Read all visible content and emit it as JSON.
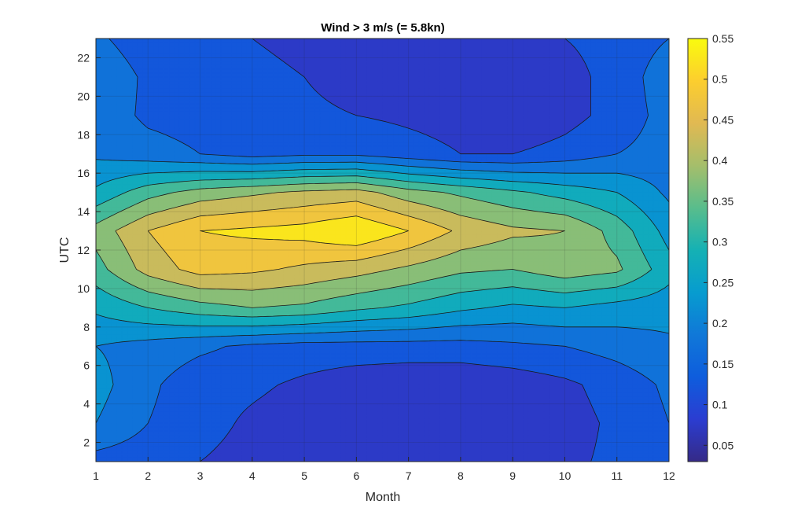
{
  "chart_data": {
    "type": "heatmap",
    "style": "filled-contour",
    "title": "Wind > 3 m/s (= 5.8kn)",
    "xlabel": "Month",
    "ylabel": "UTC",
    "x": [
      1,
      2,
      3,
      4,
      5,
      6,
      7,
      8,
      9,
      10,
      11,
      12
    ],
    "y": [
      1,
      3,
      5,
      7,
      9,
      11,
      13,
      15,
      17,
      19,
      21,
      23
    ],
    "xlim": [
      1,
      12
    ],
    "ylim": [
      1,
      23
    ],
    "xticks": [
      "1",
      "2",
      "3",
      "4",
      "5",
      "6",
      "7",
      "8",
      "9",
      "10",
      "11",
      "12"
    ],
    "yticks": [
      "2",
      "4",
      "6",
      "8",
      "10",
      "12",
      "14",
      "16",
      "18",
      "20",
      "22"
    ],
    "grid": true,
    "colormap": "parula",
    "colorbar": {
      "range": [
        0.03,
        0.55
      ],
      "ticks": [
        "0.05",
        "0.1",
        "0.15",
        "0.2",
        "0.25",
        "0.3",
        "0.35",
        "0.4",
        "0.45",
        "0.5",
        "0.55"
      ],
      "location": "right"
    },
    "z": [
      [
        0.13,
        0.12,
        0.1,
        0.08,
        0.06,
        0.06,
        0.06,
        0.05,
        0.07,
        0.09,
        0.11,
        0.13
      ],
      [
        0.2,
        0.15,
        0.12,
        0.09,
        0.07,
        0.06,
        0.05,
        0.05,
        0.06,
        0.08,
        0.11,
        0.15
      ],
      [
        0.22,
        0.16,
        0.12,
        0.11,
        0.09,
        0.07,
        0.06,
        0.06,
        0.07,
        0.09,
        0.12,
        0.16
      ],
      [
        0.2,
        0.18,
        0.16,
        0.14,
        0.13,
        0.13,
        0.13,
        0.13,
        0.14,
        0.15,
        0.17,
        0.19
      ],
      [
        0.26,
        0.3,
        0.33,
        0.35,
        0.34,
        0.31,
        0.29,
        0.26,
        0.24,
        0.25,
        0.23,
        0.22
      ],
      [
        0.33,
        0.42,
        0.47,
        0.46,
        0.44,
        0.42,
        0.39,
        0.36,
        0.35,
        0.38,
        0.36,
        0.27
      ],
      [
        0.37,
        0.45,
        0.5,
        0.51,
        0.52,
        0.55,
        0.5,
        0.44,
        0.41,
        0.4,
        0.33,
        0.23
      ],
      [
        0.26,
        0.33,
        0.37,
        0.39,
        0.41,
        0.42,
        0.37,
        0.34,
        0.31,
        0.28,
        0.25,
        0.19
      ],
      [
        0.19,
        0.17,
        0.15,
        0.13,
        0.14,
        0.14,
        0.12,
        0.1,
        0.1,
        0.12,
        0.15,
        0.17
      ],
      [
        0.18,
        0.14,
        0.13,
        0.12,
        0.11,
        0.1,
        0.09,
        0.08,
        0.05,
        0.08,
        0.12,
        0.17
      ],
      [
        0.19,
        0.14,
        0.12,
        0.11,
        0.1,
        0.08,
        0.07,
        0.07,
        0.07,
        0.08,
        0.12,
        0.18
      ],
      [
        0.16,
        0.12,
        0.11,
        0.1,
        0.09,
        0.08,
        0.07,
        0.07,
        0.08,
        0.1,
        0.12,
        0.15
      ]
    ]
  }
}
